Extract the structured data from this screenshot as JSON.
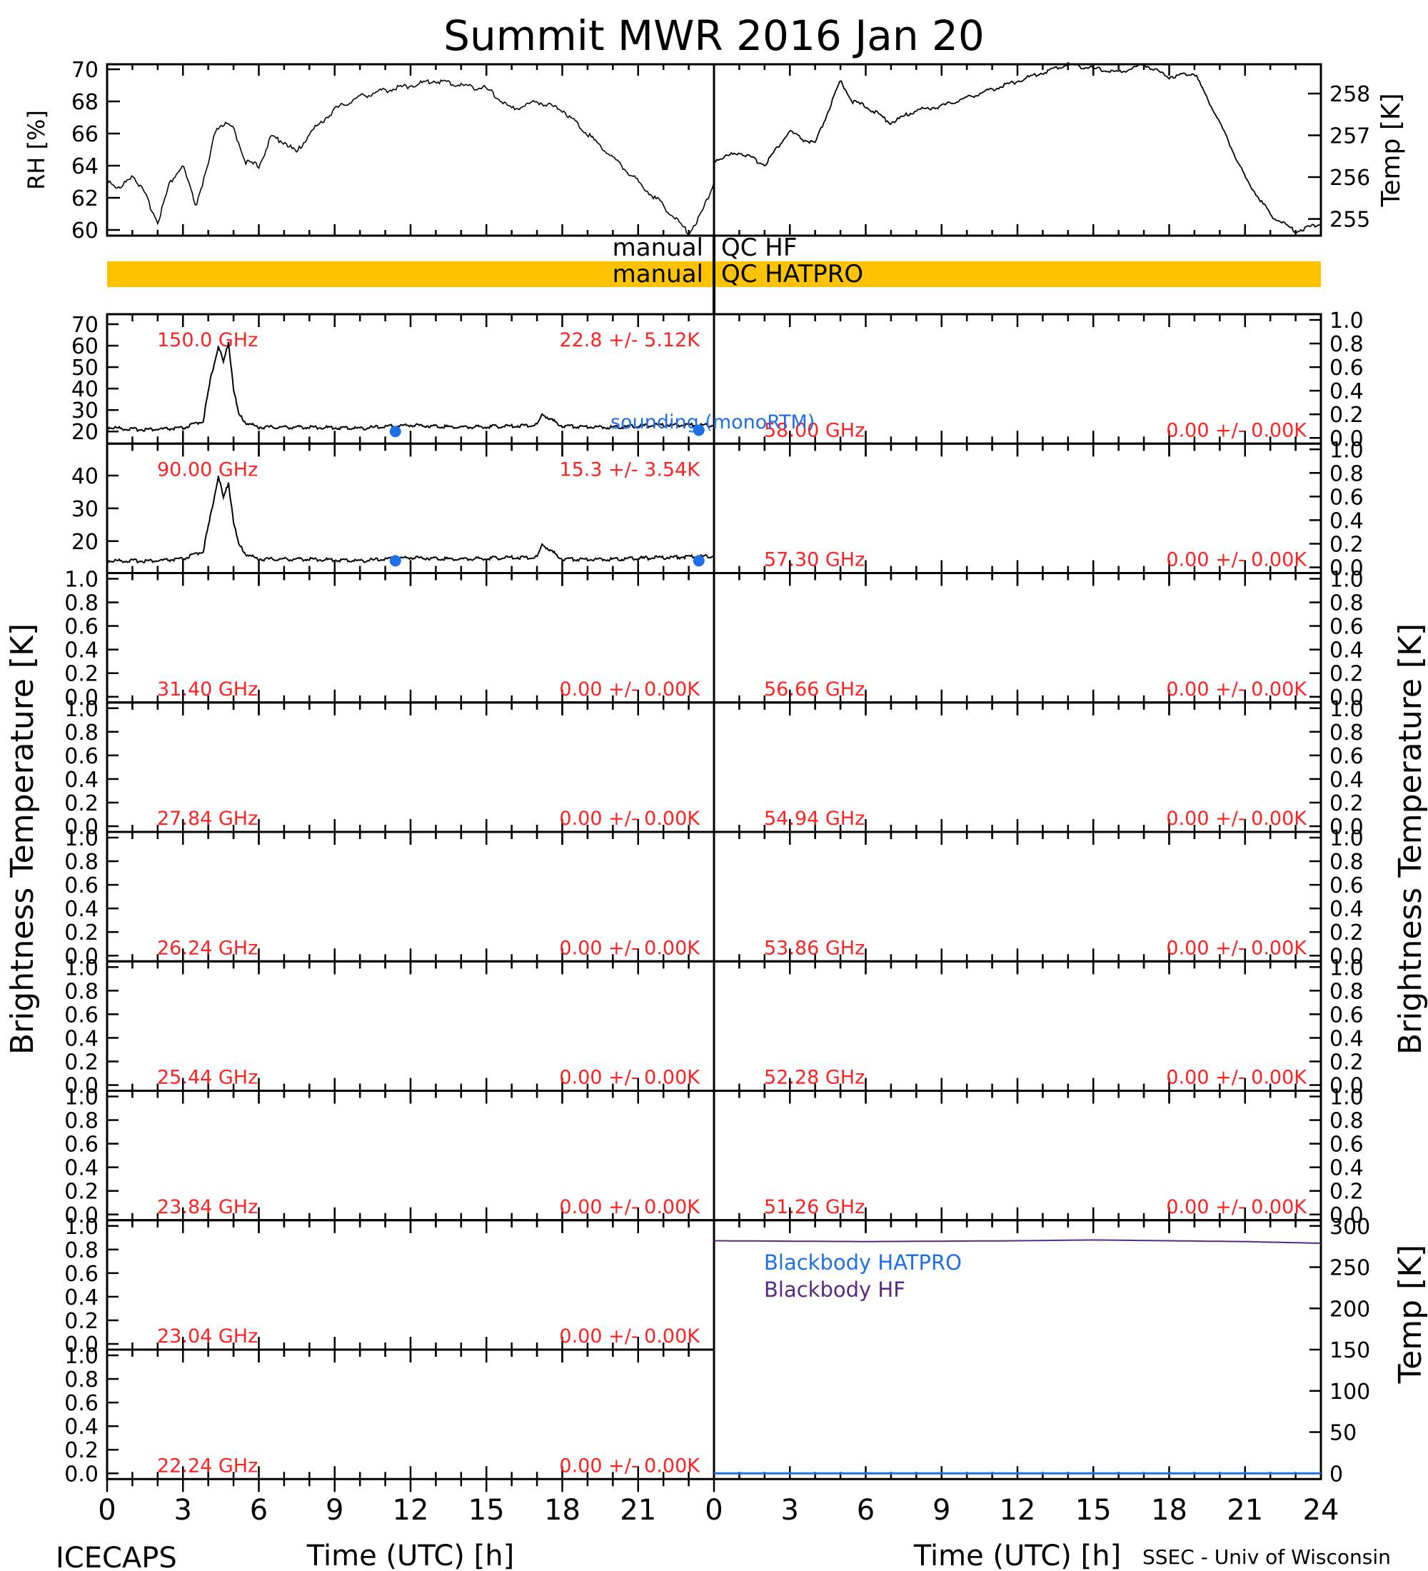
{
  "title": "Summit MWR 2016 Jan 20",
  "colors": {
    "qc_bar": "#fec300",
    "annotation_red": "#ff2222",
    "sounding_blue": "#1e6fe8",
    "blackbody_hatpro": "#1e6fe8",
    "blackbody_hf": "#5a2a82",
    "trace": "#000000"
  },
  "time_axis": {
    "label": "Time (UTC) [h]",
    "ticks": [
      "0",
      "3",
      "6",
      "9",
      "12",
      "15",
      "18",
      "21",
      "24"
    ],
    "range": [
      0,
      24
    ]
  },
  "meteo": {
    "rh_ylabel": "RH [%]",
    "rh_ticks": [
      "60",
      "62",
      "64",
      "66",
      "68",
      "70"
    ],
    "temp_ylabel": "Temp [K]",
    "temp_ticks": [
      "255",
      "256",
      "257",
      "258"
    ]
  },
  "qc": {
    "hf_left": "manual",
    "hf_right": "QC HF",
    "hatpro_left": "manual",
    "hatpro_right": "QC HATPRO"
  },
  "left_ylabel": "Brightness Temperature [K]",
  "right_ylabel": "Brightness Temperature [K]",
  "unit_ticks": [
    "0.0",
    "0.2",
    "0.4",
    "0.6",
    "0.8",
    "1.0"
  ],
  "sounding_label": "sounding (monoRTM)",
  "panels_left": [
    {
      "freq": "150.0 GHz",
      "stat": "22.8 +/-  5.12K",
      "ticks": [
        "20",
        "30",
        "40",
        "50",
        "60",
        "70"
      ]
    },
    {
      "freq": "90.00 GHz",
      "stat": "15.3 +/-  3.54K",
      "ticks": [
        "20",
        "30",
        "40"
      ]
    },
    {
      "freq": "31.40 GHz",
      "stat": "0.00 +/-  0.00K"
    },
    {
      "freq": "27.84 GHz",
      "stat": "0.00 +/-  0.00K"
    },
    {
      "freq": "26.24 GHz",
      "stat": "0.00 +/-  0.00K"
    },
    {
      "freq": "25.44 GHz",
      "stat": "0.00 +/-  0.00K"
    },
    {
      "freq": "23.84 GHz",
      "stat": "0.00 +/-  0.00K"
    },
    {
      "freq": "23.04 GHz",
      "stat": "0.00 +/-  0.00K"
    },
    {
      "freq": "22.24 GHz",
      "stat": "0.00 +/-  0.00K"
    }
  ],
  "panels_right": [
    {
      "freq": "58.00 GHz",
      "stat": "0.00 +/-  0.00K"
    },
    {
      "freq": "57.30 GHz",
      "stat": "0.00 +/-  0.00K"
    },
    {
      "freq": "56.66 GHz",
      "stat": "0.00 +/-  0.00K"
    },
    {
      "freq": "54.94 GHz",
      "stat": "0.00 +/-  0.00K"
    },
    {
      "freq": "53.86 GHz",
      "stat": "0.00 +/-  0.00K"
    },
    {
      "freq": "52.28 GHz",
      "stat": "0.00 +/-  0.00K"
    },
    {
      "freq": "51.26 GHz",
      "stat": "0.00 +/-  0.00K"
    }
  ],
  "blackbody": {
    "ylabel": "Temp [K]",
    "ticks": [
      "0",
      "50",
      "100",
      "150",
      "200",
      "250",
      "300"
    ],
    "legend_hatpro": "Blackbody HATPRO",
    "legend_hf": "Blackbody HF"
  },
  "footer": {
    "left": "ICECAPS",
    "right": "SSEC - Univ of Wisconsin"
  },
  "chart_data": [
    {
      "type": "line",
      "name": "RH",
      "ylabel": "RH [%]",
      "ylim": [
        60,
        70
      ],
      "x": [
        0,
        0.5,
        1,
        1.5,
        2,
        2.5,
        3,
        3.5,
        4,
        4.3,
        4.6,
        5,
        5.5,
        6,
        6.5,
        7,
        7.5,
        8,
        9,
        10,
        11,
        12,
        13,
        14,
        15,
        16,
        17,
        18,
        19,
        20,
        21,
        22,
        23,
        23.5,
        24
      ],
      "y": [
        63.2,
        62.5,
        63.5,
        62.2,
        60.5,
        63.0,
        64.0,
        61.5,
        64.0,
        66.3,
        66.6,
        66.3,
        64.2,
        64.0,
        65.8,
        65.5,
        64.8,
        66.0,
        67.5,
        68.3,
        68.7,
        69.0,
        69.3,
        69.0,
        68.8,
        67.5,
        68.0,
        67.5,
        66.0,
        64.5,
        63.0,
        61.5,
        59.8,
        61.0,
        63.0
      ]
    },
    {
      "type": "line",
      "name": "Temp",
      "ylabel": "Temp [K]",
      "ylim": [
        254.6,
        258.7
      ],
      "x": [
        0,
        1,
        2,
        3,
        3.5,
        4,
        5,
        5.5,
        6,
        7,
        8,
        9,
        10,
        11,
        12,
        13,
        14,
        15,
        16,
        17,
        18,
        19,
        20,
        21,
        22,
        23,
        24
      ],
      "y": [
        256.4,
        256.6,
        256.3,
        257.1,
        256.9,
        256.8,
        258.3,
        257.8,
        257.7,
        257.3,
        257.6,
        257.7,
        257.9,
        258.1,
        258.3,
        258.5,
        258.7,
        258.6,
        258.5,
        258.7,
        258.4,
        258.5,
        257.3,
        256.0,
        255.1,
        254.7,
        254.9
      ]
    },
    {
      "type": "line",
      "name": "150.0 GHz",
      "ylim": [
        17,
        72
      ],
      "x": [
        0,
        1,
        2,
        3,
        3.8,
        4.1,
        4.4,
        4.6,
        4.8,
        5.0,
        5.2,
        5.5,
        6,
        8,
        10,
        12,
        14,
        16,
        17,
        17.2,
        18,
        20,
        22,
        24
      ],
      "y": [
        22,
        21,
        21,
        21.5,
        25,
        45,
        60,
        52,
        62,
        40,
        28,
        24,
        22,
        22,
        21.5,
        23,
        22,
        22.5,
        23,
        28,
        22.5,
        22,
        23,
        23
      ]
    },
    {
      "type": "line",
      "name": "90.00 GHz",
      "ylim": [
        12,
        48
      ],
      "x": [
        0,
        1,
        2,
        3,
        3.8,
        4.1,
        4.4,
        4.6,
        4.8,
        5.0,
        5.2,
        5.5,
        6,
        8,
        10,
        12,
        14,
        16,
        17,
        17.2,
        18,
        20,
        22,
        24
      ],
      "y": [
        14,
        14,
        14,
        14.5,
        17,
        28,
        40,
        33,
        38,
        26,
        19,
        16,
        14.5,
        14.5,
        14,
        15,
        14.5,
        15,
        15,
        19,
        14.5,
        14.5,
        15,
        15.5
      ]
    },
    {
      "type": "scatter",
      "name": "sounding (monoRTM)",
      "x": [
        11.4,
        23.4
      ],
      "y_150": [
        20.0,
        20.6
      ],
      "y_90": [
        14.0,
        14.0
      ]
    },
    {
      "type": "line",
      "name": "Blackbody HF",
      "ylim": [
        0,
        300
      ],
      "x": [
        0,
        6,
        12,
        15,
        18,
        21,
        24
      ],
      "y": [
        282,
        281,
        282,
        283,
        282,
        281,
        279
      ]
    },
    {
      "type": "line",
      "name": "Blackbody HATPRO",
      "ylim": [
        0,
        300
      ],
      "x": [
        0,
        24
      ],
      "y": [
        0,
        0
      ]
    }
  ]
}
